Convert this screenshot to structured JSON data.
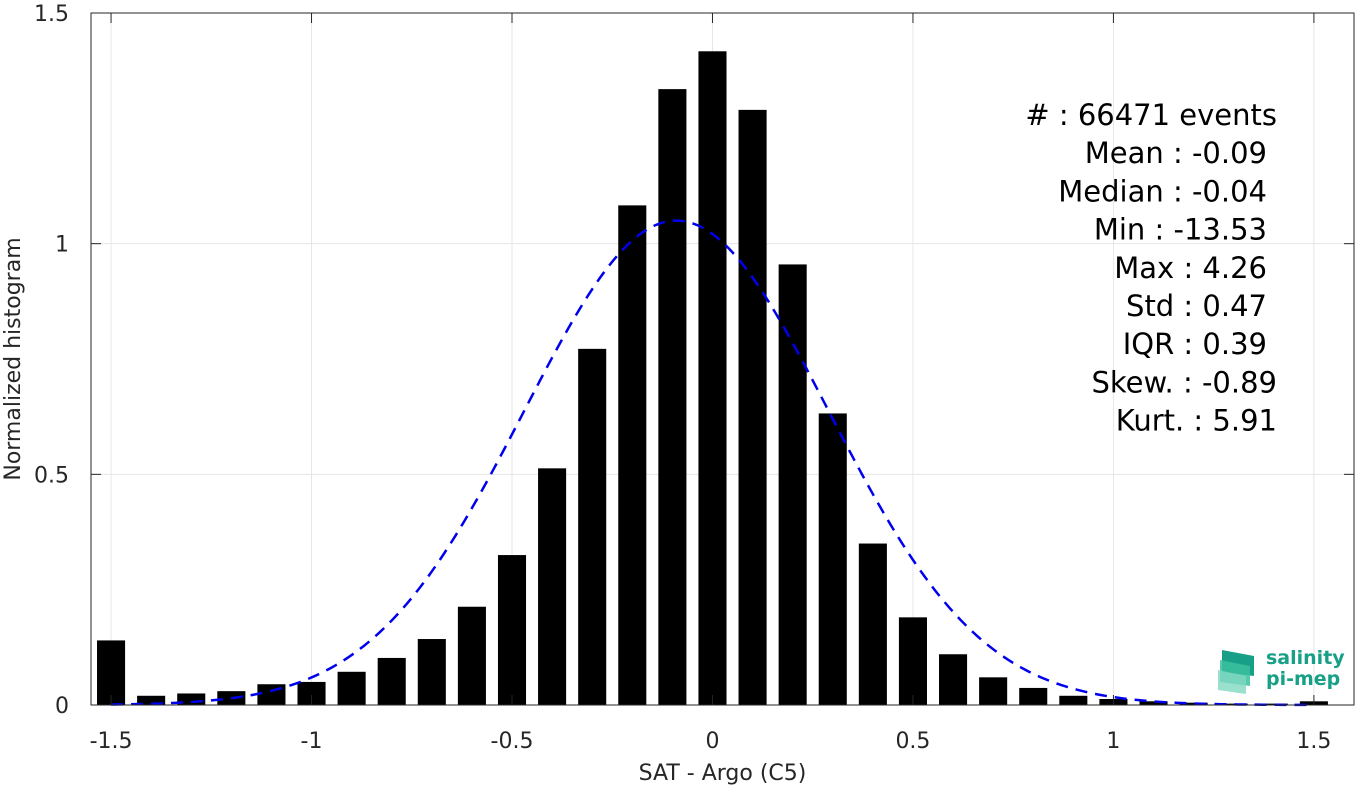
{
  "chart_data": {
    "type": "bar",
    "xlabel": "SAT - Argo (C5)",
    "ylabel": "Normalized histogram",
    "xlim": [
      -1.55,
      1.6
    ],
    "ylim": [
      0,
      1.5
    ],
    "xticks": [
      "-1.5",
      "-1",
      "-0.5",
      "0",
      "0.5",
      "1",
      "1.5"
    ],
    "xtick_values": [
      -1.5,
      -1,
      -0.5,
      0,
      0.5,
      1,
      1.5
    ],
    "yticks": [
      "0",
      "0.5",
      "1",
      "1.5"
    ],
    "ytick_values": [
      0,
      0.5,
      1,
      1.5
    ],
    "grid": true,
    "bin_width": 0.1,
    "bar_width_fraction": 0.7,
    "bar_color": "#000000",
    "x": [
      -1.5,
      -1.4,
      -1.3,
      -1.2,
      -1.1,
      -1.0,
      -0.9,
      -0.8,
      -0.7,
      -0.6,
      -0.5,
      -0.4,
      -0.3,
      -0.2,
      -0.1,
      0.0,
      0.1,
      0.2,
      0.3,
      0.4,
      0.5,
      0.6,
      0.7,
      0.8,
      0.9,
      1.0,
      1.1,
      1.2,
      1.3,
      1.4,
      1.5
    ],
    "values": [
      0.14,
      0.02,
      0.025,
      0.03,
      0.045,
      0.05,
      0.072,
      0.102,
      0.143,
      0.213,
      0.325,
      0.513,
      0.772,
      1.083,
      1.335,
      1.417,
      1.29,
      0.955,
      0.632,
      0.35,
      0.19,
      0.11,
      0.06,
      0.037,
      0.02,
      0.013,
      0.008,
      0.005,
      0.003,
      0.003,
      0.008
    ],
    "fit_curve": {
      "style": "dashed",
      "color": "#0000ee",
      "mean": -0.09,
      "std": 0.38,
      "peak": 1.05
    },
    "annotations": [
      "#  : 66471 events",
      "Mean : -0.09",
      "Median : -0.04",
      "Min : -13.53",
      "Max : 4.26",
      "Std : 0.47",
      "IQR : 0.39",
      "Skew. : -0.89",
      "Kurt. : 5.91"
    ]
  },
  "logo": {
    "line1": "salinity",
    "line2": "pi-mep",
    "color": "#17a087"
  }
}
